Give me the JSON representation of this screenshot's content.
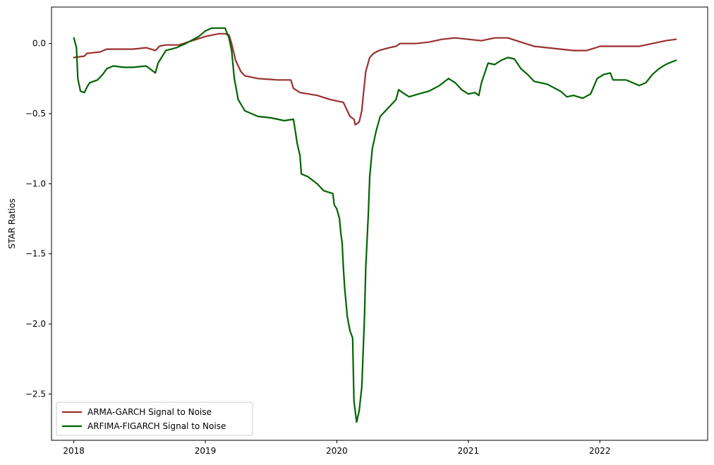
{
  "chart_data": {
    "type": "line",
    "title": "",
    "xlabel": "",
    "ylabel": "STAR Ratios",
    "xlim": [
      2017.83,
      2022.82
    ],
    "ylim": [
      -2.83,
      0.26
    ],
    "x_ticks": [
      2018,
      2019,
      2020,
      2021,
      2022
    ],
    "x_tick_labels": [
      "2018",
      "2019",
      "2020",
      "2021",
      "2022"
    ],
    "y_ticks": [
      0.0,
      -0.5,
      -1.0,
      -1.5,
      -2.0,
      -2.5
    ],
    "y_tick_labels": [
      "0.0",
      "−0.5",
      "−1.0",
      "−1.5",
      "−2.0",
      "−2.5"
    ],
    "grid": false,
    "legend_position": "lower-left",
    "series": [
      {
        "name": "ARMA-GARCH Signal to Noise",
        "color": "#9b3030",
        "points": [
          [
            2018.0,
            -0.1
          ],
          [
            2018.08,
            -0.09
          ],
          [
            2018.1,
            -0.07
          ],
          [
            2018.2,
            -0.06
          ],
          [
            2018.25,
            -0.04
          ],
          [
            2018.35,
            -0.04
          ],
          [
            2018.45,
            -0.04
          ],
          [
            2018.55,
            -0.03
          ],
          [
            2018.62,
            -0.05
          ],
          [
            2018.65,
            -0.02
          ],
          [
            2018.7,
            -0.01
          ],
          [
            2018.8,
            -0.01
          ],
          [
            2018.9,
            0.02
          ],
          [
            2019.0,
            0.05
          ],
          [
            2019.1,
            0.07
          ],
          [
            2019.15,
            0.07
          ],
          [
            2019.18,
            0.06
          ],
          [
            2019.2,
            0.0
          ],
          [
            2019.23,
            -0.12
          ],
          [
            2019.27,
            -0.2
          ],
          [
            2019.3,
            -0.23
          ],
          [
            2019.4,
            -0.25
          ],
          [
            2019.55,
            -0.26
          ],
          [
            2019.65,
            -0.26
          ],
          [
            2019.67,
            -0.32
          ],
          [
            2019.72,
            -0.35
          ],
          [
            2019.85,
            -0.37
          ],
          [
            2019.95,
            -0.4
          ],
          [
            2020.05,
            -0.42
          ],
          [
            2020.08,
            -0.48
          ],
          [
            2020.1,
            -0.52
          ],
          [
            2020.13,
            -0.54
          ],
          [
            2020.14,
            -0.58
          ],
          [
            2020.17,
            -0.56
          ],
          [
            2020.19,
            -0.48
          ],
          [
            2020.2,
            -0.38
          ],
          [
            2020.22,
            -0.2
          ],
          [
            2020.25,
            -0.1
          ],
          [
            2020.28,
            -0.07
          ],
          [
            2020.32,
            -0.05
          ],
          [
            2020.4,
            -0.03
          ],
          [
            2020.45,
            -0.02
          ],
          [
            2020.48,
            0.0
          ],
          [
            2020.6,
            0.0
          ],
          [
            2020.7,
            0.01
          ],
          [
            2020.8,
            0.03
          ],
          [
            2020.9,
            0.04
          ],
          [
            2021.0,
            0.03
          ],
          [
            2021.1,
            0.02
          ],
          [
            2021.2,
            0.04
          ],
          [
            2021.3,
            0.04
          ],
          [
            2021.4,
            0.01
          ],
          [
            2021.5,
            -0.02
          ],
          [
            2021.6,
            -0.03
          ],
          [
            2021.7,
            -0.04
          ],
          [
            2021.8,
            -0.05
          ],
          [
            2021.9,
            -0.05
          ],
          [
            2021.97,
            -0.03
          ],
          [
            2022.0,
            -0.02
          ],
          [
            2022.1,
            -0.02
          ],
          [
            2022.2,
            -0.02
          ],
          [
            2022.3,
            -0.02
          ],
          [
            2022.4,
            0.0
          ],
          [
            2022.5,
            0.02
          ],
          [
            2022.58,
            0.03
          ]
        ]
      },
      {
        "name": "ARFIMA-FIGARCH Signal to Noise",
        "color": "#006400",
        "points": [
          [
            2018.0,
            0.04
          ],
          [
            2018.02,
            -0.03
          ],
          [
            2018.03,
            -0.25
          ],
          [
            2018.05,
            -0.34
          ],
          [
            2018.08,
            -0.35
          ],
          [
            2018.1,
            -0.31
          ],
          [
            2018.12,
            -0.28
          ],
          [
            2018.18,
            -0.26
          ],
          [
            2018.22,
            -0.22
          ],
          [
            2018.25,
            -0.18
          ],
          [
            2018.3,
            -0.16
          ],
          [
            2018.38,
            -0.17
          ],
          [
            2018.45,
            -0.17
          ],
          [
            2018.55,
            -0.16
          ],
          [
            2018.62,
            -0.21
          ],
          [
            2018.64,
            -0.14
          ],
          [
            2018.7,
            -0.05
          ],
          [
            2018.78,
            -0.03
          ],
          [
            2018.85,
            0.0
          ],
          [
            2018.95,
            0.05
          ],
          [
            2019.0,
            0.09
          ],
          [
            2019.05,
            0.11
          ],
          [
            2019.15,
            0.11
          ],
          [
            2019.18,
            0.04
          ],
          [
            2019.2,
            -0.05
          ],
          [
            2019.22,
            -0.25
          ],
          [
            2019.25,
            -0.4
          ],
          [
            2019.3,
            -0.48
          ],
          [
            2019.4,
            -0.52
          ],
          [
            2019.5,
            -0.53
          ],
          [
            2019.6,
            -0.55
          ],
          [
            2019.67,
            -0.54
          ],
          [
            2019.68,
            -0.6
          ],
          [
            2019.7,
            -0.72
          ],
          [
            2019.72,
            -0.8
          ],
          [
            2019.73,
            -0.93
          ],
          [
            2019.78,
            -0.95
          ],
          [
            2019.85,
            -1.0
          ],
          [
            2019.9,
            -1.05
          ],
          [
            2019.97,
            -1.07
          ],
          [
            2019.98,
            -1.15
          ],
          [
            2020.0,
            -1.18
          ],
          [
            2020.02,
            -1.25
          ],
          [
            2020.03,
            -1.35
          ],
          [
            2020.04,
            -1.42
          ],
          [
            2020.05,
            -1.6
          ],
          [
            2020.06,
            -1.75
          ],
          [
            2020.07,
            -1.85
          ],
          [
            2020.08,
            -1.95
          ],
          [
            2020.1,
            -2.05
          ],
          [
            2020.12,
            -2.1
          ],
          [
            2020.13,
            -2.55
          ],
          [
            2020.15,
            -2.7
          ],
          [
            2020.17,
            -2.62
          ],
          [
            2020.19,
            -2.45
          ],
          [
            2020.2,
            -2.2
          ],
          [
            2020.21,
            -1.95
          ],
          [
            2020.22,
            -1.6
          ],
          [
            2020.24,
            -1.2
          ],
          [
            2020.25,
            -0.95
          ],
          [
            2020.27,
            -0.75
          ],
          [
            2020.3,
            -0.62
          ],
          [
            2020.33,
            -0.52
          ],
          [
            2020.4,
            -0.45
          ],
          [
            2020.45,
            -0.4
          ],
          [
            2020.47,
            -0.33
          ],
          [
            2020.5,
            -0.35
          ],
          [
            2020.55,
            -0.38
          ],
          [
            2020.62,
            -0.36
          ],
          [
            2020.7,
            -0.34
          ],
          [
            2020.78,
            -0.3
          ],
          [
            2020.85,
            -0.25
          ],
          [
            2020.9,
            -0.28
          ],
          [
            2020.95,
            -0.33
          ],
          [
            2021.0,
            -0.36
          ],
          [
            2021.05,
            -0.35
          ],
          [
            2021.08,
            -0.37
          ],
          [
            2021.1,
            -0.28
          ],
          [
            2021.15,
            -0.14
          ],
          [
            2021.2,
            -0.15
          ],
          [
            2021.25,
            -0.12
          ],
          [
            2021.3,
            -0.1
          ],
          [
            2021.35,
            -0.11
          ],
          [
            2021.4,
            -0.18
          ],
          [
            2021.45,
            -0.22
          ],
          [
            2021.5,
            -0.27
          ],
          [
            2021.6,
            -0.29
          ],
          [
            2021.7,
            -0.34
          ],
          [
            2021.75,
            -0.38
          ],
          [
            2021.8,
            -0.37
          ],
          [
            2021.87,
            -0.39
          ],
          [
            2021.93,
            -0.36
          ],
          [
            2021.98,
            -0.25
          ],
          [
            2022.03,
            -0.22
          ],
          [
            2022.08,
            -0.21
          ],
          [
            2022.1,
            -0.26
          ],
          [
            2022.2,
            -0.26
          ],
          [
            2022.25,
            -0.28
          ],
          [
            2022.3,
            -0.3
          ],
          [
            2022.35,
            -0.28
          ],
          [
            2022.4,
            -0.22
          ],
          [
            2022.45,
            -0.18
          ],
          [
            2022.5,
            -0.15
          ],
          [
            2022.55,
            -0.13
          ],
          [
            2022.58,
            -0.12
          ]
        ]
      }
    ]
  }
}
